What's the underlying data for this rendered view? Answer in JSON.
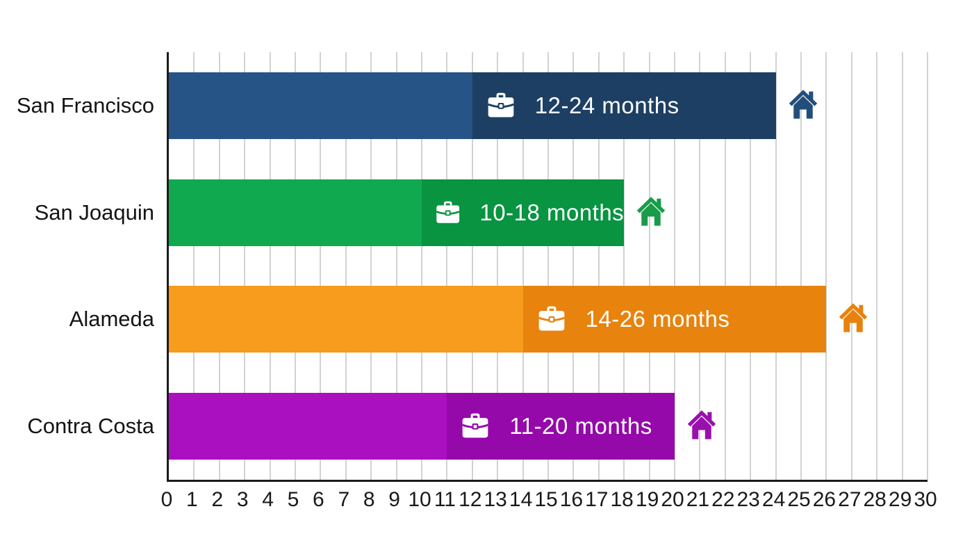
{
  "chart_data": {
    "type": "bar",
    "orientation": "horizontal",
    "categories": [
      "San Francisco",
      "San Joaquin",
      "Alameda",
      "Contra Costa"
    ],
    "series": [
      {
        "name": "range-start-months",
        "values": [
          12,
          10,
          14,
          11
        ]
      },
      {
        "name": "range-end-months",
        "values": [
          24,
          18,
          26,
          20
        ]
      }
    ],
    "bar_labels": [
      "12-24 months",
      "10-18 months",
      "14-26 months",
      "11-20 months"
    ],
    "x_axis": {
      "min": 0,
      "max": 30,
      "step": 1,
      "ticks": [
        "0",
        "1",
        "2",
        "3",
        "4",
        "5",
        "6",
        "7",
        "8",
        "9",
        "10",
        "11",
        "12",
        "13",
        "14",
        "15",
        "16",
        "17",
        "18",
        "19",
        "20",
        "21",
        "22",
        "23",
        "24",
        "25",
        "26",
        "27",
        "28",
        "29",
        "30"
      ]
    },
    "grid": true,
    "legend": "none",
    "row_colors": [
      {
        "light": "#265487",
        "dark": "#1d3f63",
        "house": "#224e7c"
      },
      {
        "light": "#10a94f",
        "dark": "#089441",
        "house": "#189c49"
      },
      {
        "light": "#f79c1d",
        "dark": "#e8830e",
        "house": "#e8820f"
      },
      {
        "light": "#aa10bf",
        "dark": "#9509aa",
        "house": "#9a10ad"
      }
    ],
    "row_icons": {
      "inside": "briefcase-icon",
      "end": "house-icon"
    },
    "axis_color": "#1b1b1b",
    "gridline_color": "#d2d2d2",
    "bar_text_color": "#ffffff"
  }
}
